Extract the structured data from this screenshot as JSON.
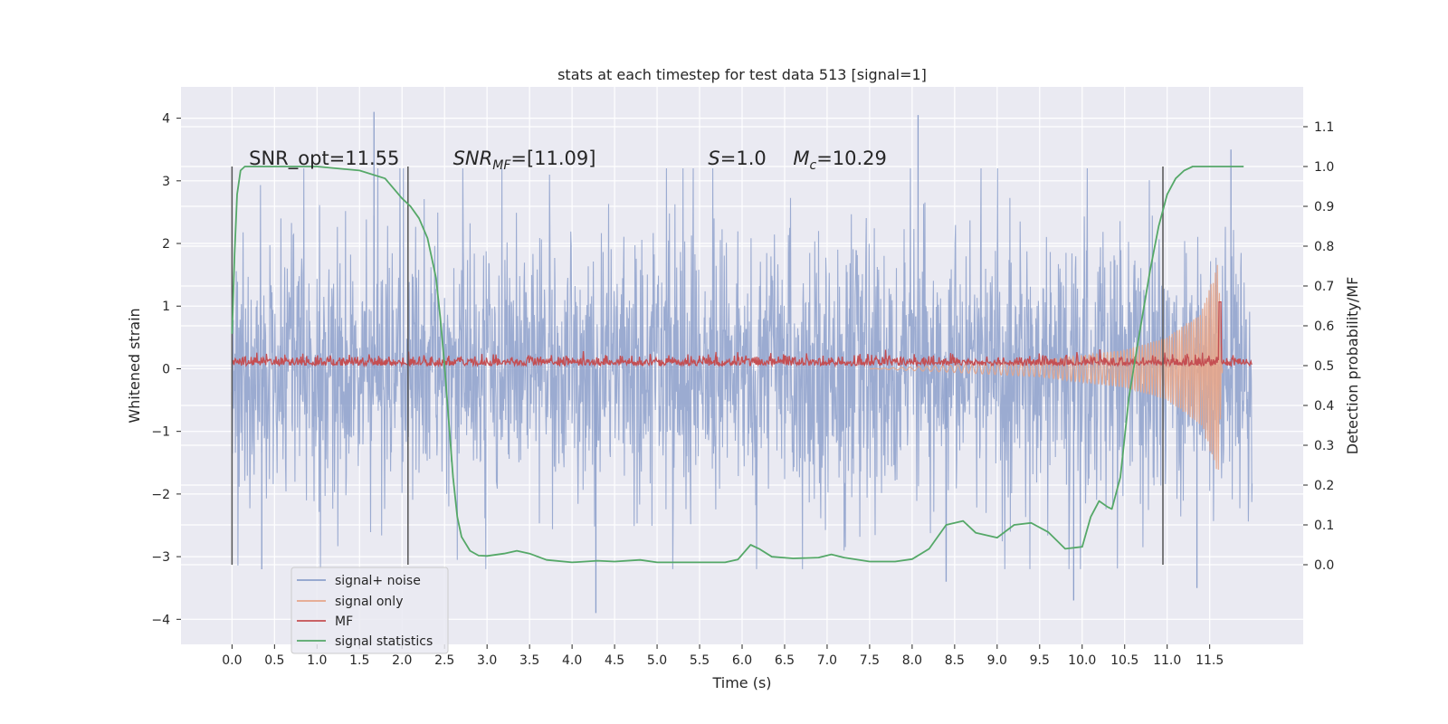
{
  "chart_data": {
    "type": "line",
    "title": "stats at each timestep for test data 513 [signal=1]",
    "xlabel": "Time (s)",
    "ylabel": "Whitened strain",
    "ylabel_right": "Detection probability/MF",
    "xlim": [
      -0.6,
      12.6
    ],
    "ylim": [
      -4.4,
      4.5
    ],
    "ylim_right": [
      -0.2,
      1.2
    ],
    "x_ticks": [
      0.0,
      0.5,
      1.0,
      1.5,
      2.0,
      2.5,
      3.0,
      3.5,
      4.0,
      4.5,
      5.0,
      5.5,
      6.0,
      6.5,
      7.0,
      7.5,
      8.0,
      8.5,
      9.0,
      9.5,
      10.0,
      10.5,
      11.0,
      11.5
    ],
    "x_tick_labels": [
      "0.0",
      "0.5",
      "1.0",
      "1.5",
      "2.0",
      "2.5",
      "3.0",
      "3.5",
      "4.0",
      "4.5",
      "5.0",
      "5.5",
      "6.0",
      "6.5",
      "7.0",
      "7.5",
      "8.0",
      "8.5",
      "9.0",
      "9.5",
      "10.0",
      "10.5",
      "11.0",
      "11.5"
    ],
    "y_ticks": [
      -4,
      -3,
      -2,
      -1,
      0,
      1,
      2,
      3,
      4
    ],
    "y_tick_labels": [
      "−4",
      "−3",
      "−2",
      "−1",
      "0",
      "1",
      "2",
      "3",
      "4"
    ],
    "y_ticks_right": [
      0.0,
      0.1,
      0.2,
      0.3,
      0.4,
      0.5,
      0.6,
      0.7,
      0.8,
      0.9,
      1.0,
      1.1
    ],
    "y_tick_labels_right": [
      "0.0",
      "0.1",
      "0.2",
      "0.3",
      "0.4",
      "0.5",
      "0.6",
      "0.7",
      "0.8",
      "0.9",
      "1.0",
      "1.1"
    ],
    "grid": true,
    "legend_position": "bottom-left",
    "series": [
      {
        "name": "signal+ noise",
        "color": "#8da0cb",
        "axis": "left",
        "x_range": [
          0.0,
          12.0
        ],
        "typical_envelope": [
          -2.4,
          2.2
        ],
        "peak_excursions": [
          [
            1.67,
            4.1
          ],
          [
            8.07,
            4.05
          ],
          [
            4.28,
            -3.9
          ],
          [
            9.9,
            -3.7
          ],
          [
            11.35,
            -3.5
          ],
          [
            11.75,
            3.5
          ],
          [
            0.35,
            -3.2
          ],
          [
            8.4,
            -3.4
          ]
        ]
      },
      {
        "name": "signal only",
        "color": "#e5a58a",
        "axis": "left",
        "x_range": [
          7.5,
          11.65
        ],
        "envelope_amplitude": [
          [
            7.5,
            0.0
          ],
          [
            8.5,
            0.06
          ],
          [
            9.5,
            0.13
          ],
          [
            10.5,
            0.3
          ],
          [
            11.0,
            0.5
          ],
          [
            11.4,
            0.9
          ],
          [
            11.6,
            1.7
          ],
          [
            11.65,
            0.0
          ]
        ]
      },
      {
        "name": "MF",
        "color": "#c44e52",
        "axis": "right",
        "x_range": [
          0.0,
          12.0
        ],
        "baseline": 0.51,
        "noise_range": [
          0.5,
          0.55
        ],
        "peak": [
          11.62,
          0.66
        ]
      },
      {
        "name": "signal statistics",
        "color": "#55a868",
        "axis": "right",
        "x": [
          0.0,
          0.03,
          0.06,
          0.1,
          0.15,
          0.2,
          0.3,
          0.5,
          1.0,
          1.5,
          1.8,
          2.0,
          2.1,
          2.2,
          2.3,
          2.4,
          2.45,
          2.5,
          2.55,
          2.6,
          2.65,
          2.7,
          2.8,
          2.9,
          3.0,
          3.2,
          3.35,
          3.5,
          3.7,
          4.0,
          4.3,
          4.5,
          4.8,
          5.0,
          5.5,
          5.8,
          5.95,
          6.1,
          6.2,
          6.35,
          6.6,
          6.9,
          7.05,
          7.2,
          7.5,
          7.8,
          8.0,
          8.2,
          8.4,
          8.6,
          8.75,
          9.0,
          9.2,
          9.4,
          9.6,
          9.8,
          10.0,
          10.1,
          10.2,
          10.3,
          10.35,
          10.45,
          10.55,
          10.65,
          10.8,
          10.9,
          11.0,
          11.1,
          11.2,
          11.3,
          11.5,
          11.7,
          11.9
        ],
        "y": [
          0.58,
          0.78,
          0.93,
          0.99,
          1.0,
          1.0,
          1.0,
          1.0,
          1.0,
          0.99,
          0.97,
          0.92,
          0.9,
          0.87,
          0.82,
          0.72,
          0.62,
          0.5,
          0.36,
          0.22,
          0.12,
          0.07,
          0.035,
          0.023,
          0.022,
          0.028,
          0.035,
          0.028,
          0.012,
          0.006,
          0.01,
          0.008,
          0.012,
          0.006,
          0.006,
          0.006,
          0.013,
          0.05,
          0.04,
          0.02,
          0.016,
          0.018,
          0.026,
          0.018,
          0.008,
          0.008,
          0.014,
          0.04,
          0.1,
          0.11,
          0.08,
          0.068,
          0.1,
          0.105,
          0.082,
          0.04,
          0.045,
          0.12,
          0.16,
          0.145,
          0.14,
          0.22,
          0.42,
          0.55,
          0.74,
          0.85,
          0.93,
          0.97,
          0.99,
          1.0,
          1.0,
          1.0,
          1.0
        ]
      }
    ],
    "vlines": {
      "x": [
        0.0,
        2.07,
        10.95
      ],
      "y_range": [
        0.0,
        1.0
      ],
      "color": "#555555"
    },
    "annotations": [
      {
        "text": "SNR_opt=11.55",
        "x": 0.2,
        "y": 1.0
      },
      {
        "text": "SNR",
        "sub": "MF",
        "tail": "=[11.09]",
        "italic": true,
        "x": 2.6,
        "y": 1.0
      },
      {
        "text": "S",
        "tail": "=1.0",
        "italic": true,
        "x": 5.6,
        "y": 1.0
      },
      {
        "text": "M",
        "sub": "c",
        "tail": "=10.29",
        "italic": true,
        "x": 6.6,
        "y": 1.0
      }
    ],
    "legend": [
      "signal+ noise",
      "signal only",
      "MF",
      "signal statistics"
    ]
  }
}
